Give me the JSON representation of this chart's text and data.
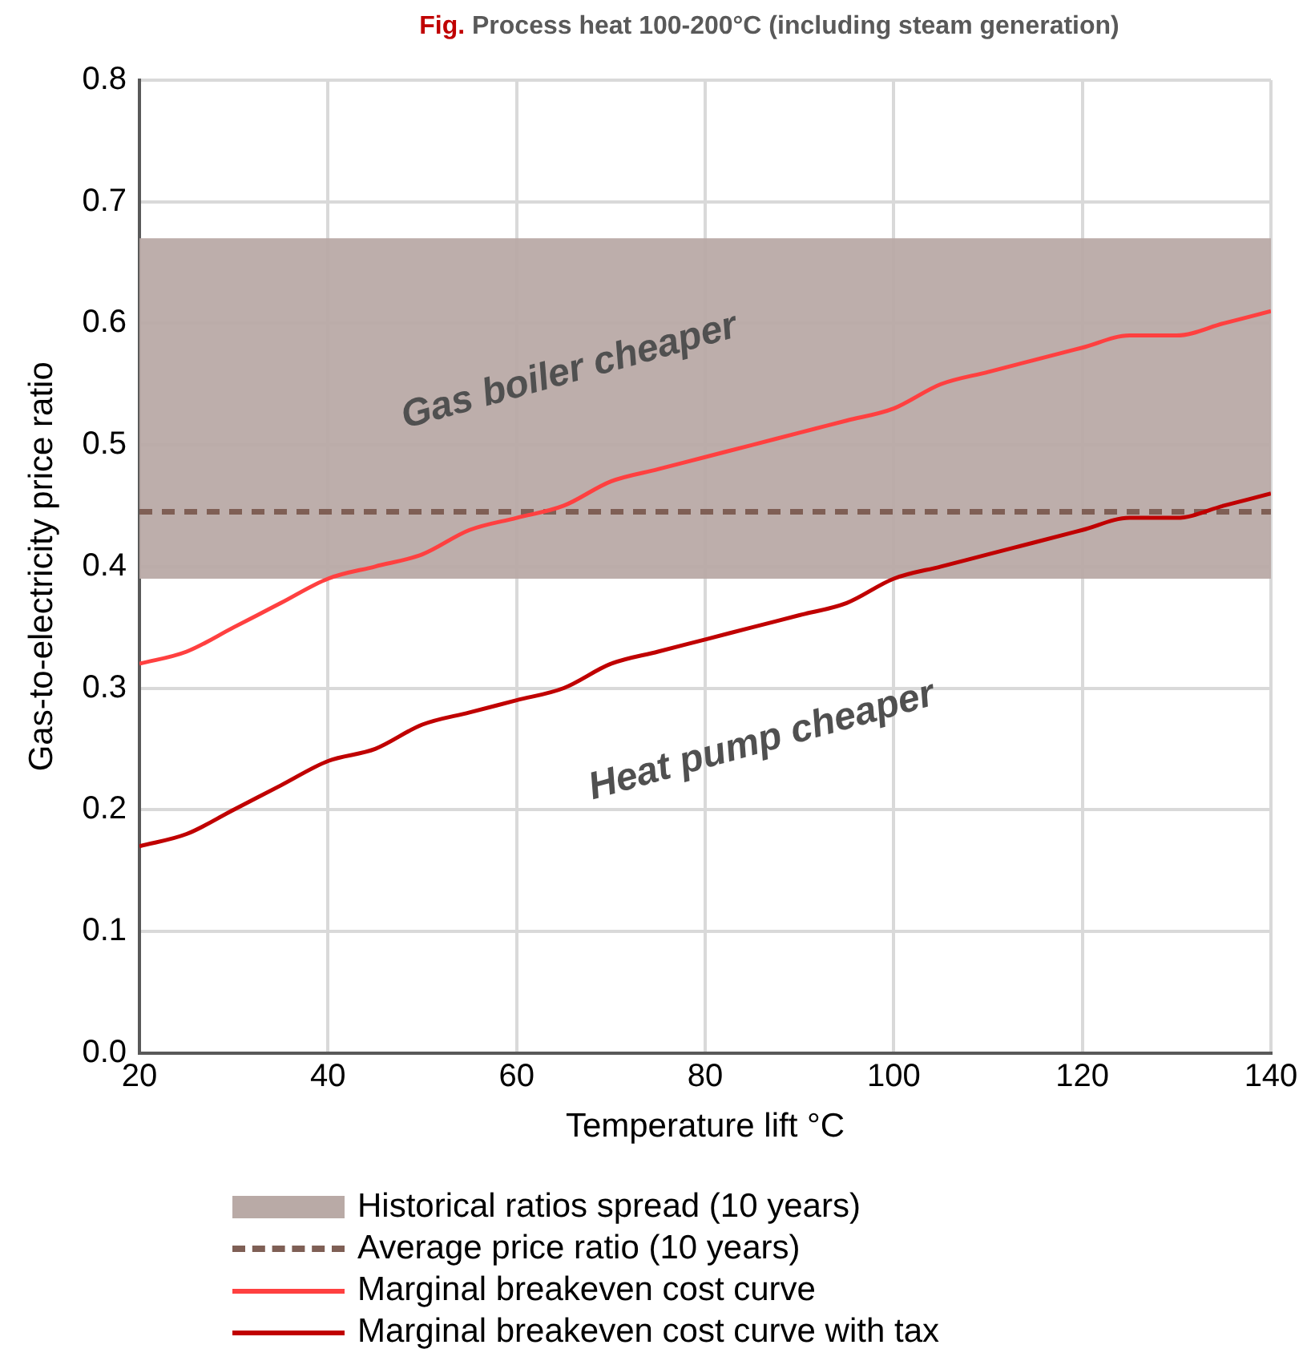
{
  "chart_data": {
    "type": "line",
    "title": "Fig. Process heat 100-200°C (including steam generation)",
    "xlabel": "Temperature lift °C",
    "ylabel": "Gas-to-electricity price ratio",
    "x": [
      20,
      25,
      30,
      35,
      40,
      45,
      50,
      55,
      60,
      65,
      70,
      75,
      80,
      85,
      90,
      95,
      100,
      105,
      110,
      115,
      120,
      125,
      130,
      135,
      140
    ],
    "series": [
      {
        "name": "Marginal breakeven cost curve",
        "color": "#ff4040",
        "values": [
          0.32,
          0.33,
          0.35,
          0.37,
          0.39,
          0.4,
          0.41,
          0.43,
          0.44,
          0.45,
          0.47,
          0.48,
          0.49,
          0.5,
          0.51,
          0.52,
          0.53,
          0.55,
          0.56,
          0.57,
          0.58,
          0.59,
          0.59,
          0.6,
          0.61
        ]
      },
      {
        "name": "Marginal breakeven cost curve with tax",
        "color": "#c00000",
        "values": [
          0.17,
          0.18,
          0.2,
          0.22,
          0.24,
          0.25,
          0.27,
          0.28,
          0.29,
          0.3,
          0.32,
          0.33,
          0.34,
          0.35,
          0.36,
          0.37,
          0.39,
          0.4,
          0.41,
          0.42,
          0.43,
          0.44,
          0.44,
          0.45,
          0.46
        ]
      }
    ],
    "bands": [
      {
        "axis": "y",
        "from": 0.39,
        "to": 0.67,
        "label": "Historical ratios spread (10 years)",
        "color": "#b9aaa6"
      }
    ],
    "ref_lines": [
      {
        "axis": "y",
        "value": 0.445,
        "label": "Average price ratio (10 years)",
        "color": "#7f5f55",
        "line_style": "dashed"
      }
    ],
    "annotations": [
      "Gas boiler cheaper",
      "Heat pump cheaper"
    ],
    "xlim": [
      20,
      140
    ],
    "xticks": [
      20,
      40,
      60,
      80,
      100,
      120,
      140
    ],
    "ylim": [
      0,
      0.8
    ],
    "yticks": [
      {
        "value": 0,
        "label": "0.0"
      },
      0.1,
      0.2,
      0.3,
      0.4,
      0.5,
      0.6,
      0.7,
      0.8
    ],
    "grid": true,
    "legend": "bottom",
    "marker": "none",
    "line_style": "solid"
  }
}
